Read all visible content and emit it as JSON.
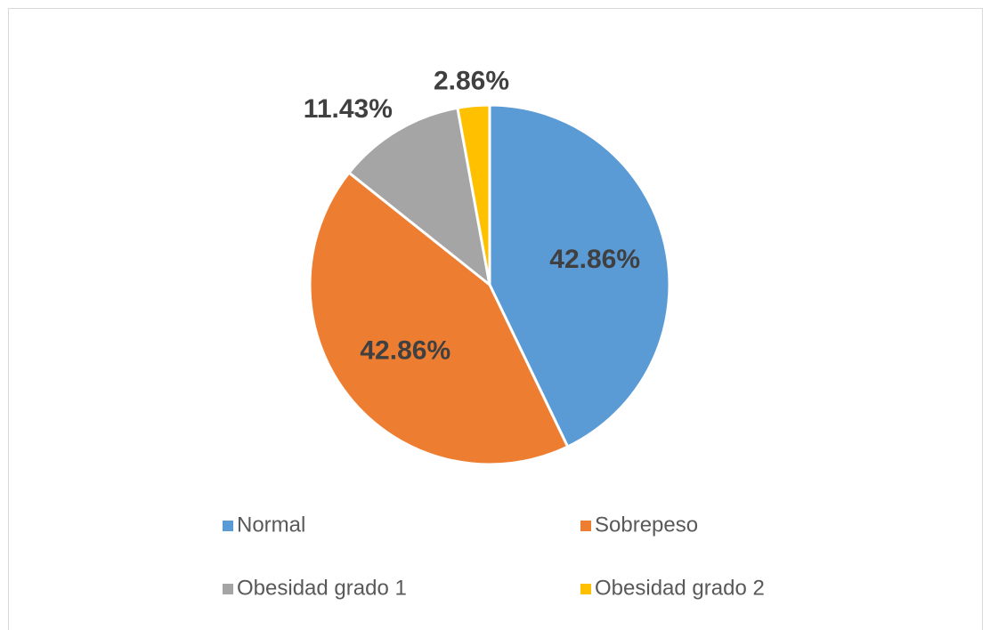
{
  "chart_data": {
    "type": "pie",
    "categories": [
      "Normal",
      "Sobrepeso",
      "Obesidad grado 1",
      "Obesidad grado 2"
    ],
    "values": [
      42.86,
      42.86,
      11.43,
      2.86
    ],
    "value_labels": [
      "42.86%",
      "42.86%",
      "11.43%",
      "2.86%"
    ],
    "colors": [
      "#5b9bd5",
      "#ed7d31",
      "#a5a5a5",
      "#ffc000"
    ],
    "legend": "bottom"
  }
}
